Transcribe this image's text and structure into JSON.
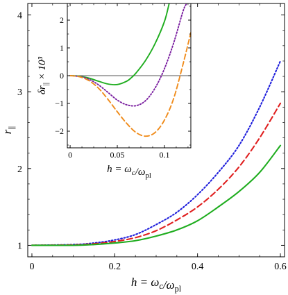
{
  "chart_data": [
    {
      "type": "line",
      "xlabel": "h = ωc/ωpl",
      "ylabel": "r||",
      "xlim": [
        -0.01,
        0.61
      ],
      "ylim": [
        0.85,
        4.15
      ],
      "xticks": [
        0,
        0.2,
        0.4,
        0.6
      ],
      "xtick_labels": [
        "0",
        "0.2",
        "0.4",
        "0.6"
      ],
      "yticks": [
        1,
        2,
        3,
        4
      ],
      "ytick_labels": [
        "1",
        "2",
        "3",
        "4"
      ],
      "grid": false,
      "legend": "none",
      "series": [
        {
          "style": "dotted",
          "color": "#1f1fdc",
          "x": [
            0,
            0.1,
            0.15,
            0.2,
            0.25,
            0.3,
            0.35,
            0.4,
            0.45,
            0.5,
            0.55,
            0.6
          ],
          "y": [
            1.0,
            1.01,
            1.03,
            1.07,
            1.14,
            1.27,
            1.43,
            1.66,
            1.95,
            2.3,
            2.8,
            3.4
          ]
        },
        {
          "style": "dashed",
          "color": "#e02020",
          "x": [
            0,
            0.1,
            0.15,
            0.2,
            0.25,
            0.3,
            0.35,
            0.4,
            0.45,
            0.5,
            0.55,
            0.6
          ],
          "y": [
            1.0,
            1.005,
            1.02,
            1.05,
            1.1,
            1.19,
            1.33,
            1.5,
            1.73,
            2.02,
            2.4,
            2.85
          ]
        },
        {
          "style": "solid",
          "color": "#1fad1f",
          "x": [
            0,
            0.1,
            0.15,
            0.2,
            0.25,
            0.3,
            0.35,
            0.4,
            0.45,
            0.5,
            0.55,
            0.6
          ],
          "y": [
            1.0,
            1.0,
            1.01,
            1.03,
            1.06,
            1.12,
            1.2,
            1.32,
            1.5,
            1.7,
            1.95,
            2.3
          ]
        }
      ]
    },
    {
      "type": "line",
      "inset": true,
      "xlabel": "h = ωc/ωpl",
      "ylabel": "δr|| × 10³",
      "xlim": [
        -0.003,
        0.128
      ],
      "ylim": [
        -2.6,
        2.6
      ],
      "xticks": [
        0,
        0.05,
        0.1
      ],
      "xtick_labels": [
        "0",
        "0.05",
        "0.1"
      ],
      "yticks": [
        -2,
        -1,
        0,
        1,
        2
      ],
      "ytick_labels": [
        "−2",
        "−1",
        "0",
        "1",
        "2"
      ],
      "reference_line": 0,
      "grid": false,
      "legend": "none",
      "series": [
        {
          "style": "solid",
          "color": "#1fad1f",
          "x": [
            0,
            0.01,
            0.02,
            0.03,
            0.04,
            0.05,
            0.06,
            0.065,
            0.07,
            0.08,
            0.09,
            0.1,
            0.105
          ],
          "y": [
            0,
            -0.02,
            -0.09,
            -0.2,
            -0.3,
            -0.32,
            -0.2,
            -0.07,
            0.1,
            0.55,
            1.15,
            1.95,
            2.6
          ]
        },
        {
          "style": "dotted",
          "color": "#7a1fa0",
          "x": [
            0,
            0.01,
            0.02,
            0.03,
            0.04,
            0.05,
            0.06,
            0.07,
            0.08,
            0.09,
            0.1,
            0.11,
            0.12,
            0.124
          ],
          "y": [
            0,
            -0.03,
            -0.13,
            -0.33,
            -0.6,
            -0.88,
            -1.05,
            -1.08,
            -0.9,
            -0.45,
            0.25,
            1.2,
            2.35,
            2.6
          ]
        },
        {
          "style": "dashed",
          "color": "#f08c1c",
          "x": [
            0,
            0.01,
            0.02,
            0.03,
            0.04,
            0.05,
            0.06,
            0.07,
            0.08,
            0.09,
            0.1,
            0.11,
            0.12,
            0.128
          ],
          "y": [
            0,
            -0.04,
            -0.18,
            -0.45,
            -0.85,
            -1.3,
            -1.72,
            -2.05,
            -2.18,
            -2.05,
            -1.6,
            -0.8,
            0.45,
            1.55
          ]
        }
      ]
    }
  ]
}
